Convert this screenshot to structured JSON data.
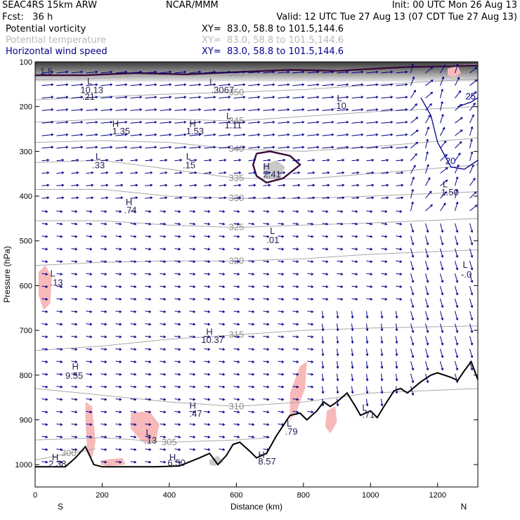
{
  "header": {
    "model": "SEAC4RS 15km ARW",
    "fcst": "Fcst:   36 h",
    "center": "NCAR/MMM",
    "init": "Init: 00 UTC Mon 26 Aug 13",
    "valid": "Valid: 12 UTC Tue 27 Aug 13 (07 CDT Tue 27 Aug 13)",
    "fields": [
      {
        "name": "Potential vorticity",
        "xy": "XY=  83.0, 58.8 to 101.5,144.6",
        "color": "#000000"
      },
      {
        "name": "Potential temperature",
        "xy": "XY=  83.0, 58.8 to 101.5,144.6",
        "color": "#b8b8b8"
      },
      {
        "name": "Horizontal wind speed",
        "xy": "XY=  83.0, 58.8 to 101.5,144.6",
        "color": "#00008b"
      }
    ]
  },
  "chart_data": {
    "type": "cross-section",
    "xlabel": "Distance (km)",
    "ylabel": "Pressure (hPa)",
    "xlim": [
      0,
      1320
    ],
    "ylim": [
      1050,
      100
    ],
    "x_ticks": [
      "0",
      "200",
      "400",
      "600",
      "800",
      "1000",
      "1200"
    ],
    "y_ticks": [
      "100",
      "200",
      "300",
      "400",
      "500",
      "600",
      "700",
      "800",
      "900",
      "1000"
    ],
    "left_end": "S",
    "right_end": "N",
    "colors": {
      "pv_contour": "#3a0a3a",
      "theta": "#a8a8a8",
      "wind_speed": "#00008b",
      "vectors": "#00008b",
      "shade_pink": "#f7b9b9",
      "shade_gray": "#c9c9c9",
      "terrain": "#000000"
    },
    "theta_contours": [
      {
        "label": "355",
        "points": [
          [
            0,
            140
          ],
          [
            150,
            138
          ],
          [
            300,
            132
          ],
          [
            450,
            128
          ],
          [
            600,
            126
          ],
          [
            800,
            120
          ],
          [
            1000,
            115
          ],
          [
            1320,
            105
          ]
        ]
      },
      {
        "label": "350",
        "points": [
          [
            0,
            185
          ],
          [
            200,
            178
          ],
          [
            400,
            172
          ],
          [
            600,
            168
          ],
          [
            800,
            162
          ],
          [
            1000,
            152
          ],
          [
            1320,
            138
          ]
        ]
      },
      {
        "label": "345",
        "points": [
          [
            0,
            235
          ],
          [
            200,
            228
          ],
          [
            400,
            228
          ],
          [
            600,
            232
          ],
          [
            800,
            222
          ],
          [
            1000,
            212
          ],
          [
            1320,
            200
          ]
        ]
      },
      {
        "label": "340",
        "points": [
          [
            0,
            280
          ],
          [
            200,
            276
          ],
          [
            400,
            280
          ],
          [
            600,
            295
          ],
          [
            800,
            300
          ],
          [
            1000,
            290
          ],
          [
            1320,
            270
          ]
        ]
      },
      {
        "label": "335",
        "points": [
          [
            0,
            325
          ],
          [
            200,
            320
          ],
          [
            400,
            340
          ],
          [
            600,
            360
          ],
          [
            800,
            362
          ],
          [
            1000,
            350
          ],
          [
            1320,
            330
          ]
        ]
      },
      {
        "label": "330",
        "points": [
          [
            0,
            385
          ],
          [
            200,
            385
          ],
          [
            400,
            400
          ],
          [
            600,
            405
          ],
          [
            800,
            405
          ],
          [
            1000,
            400
          ],
          [
            1320,
            390
          ]
        ]
      },
      {
        "label": "325",
        "points": [
          [
            0,
            455
          ],
          [
            200,
            455
          ],
          [
            400,
            465
          ],
          [
            600,
            470
          ],
          [
            800,
            465
          ],
          [
            1000,
            460
          ],
          [
            1320,
            450
          ]
        ]
      },
      {
        "label": "320",
        "points": [
          [
            0,
            555
          ],
          [
            200,
            548
          ],
          [
            400,
            545
          ],
          [
            600,
            545
          ],
          [
            800,
            540
          ],
          [
            1000,
            530
          ],
          [
            1320,
            520
          ]
        ]
      },
      {
        "label": "315",
        "points": [
          [
            0,
            745
          ],
          [
            200,
            735
          ],
          [
            400,
            720
          ],
          [
            600,
            710
          ],
          [
            800,
            700
          ],
          [
            1000,
            695
          ],
          [
            1320,
            690
          ]
        ]
      },
      {
        "label": "310",
        "points": [
          [
            0,
            830
          ],
          [
            200,
            845
          ],
          [
            400,
            860
          ],
          [
            600,
            870
          ],
          [
            800,
            860
          ],
          [
            1000,
            840
          ],
          [
            1320,
            830
          ]
        ]
      },
      {
        "label": "305",
        "points": [
          [
            0,
            945
          ],
          [
            200,
            940
          ],
          [
            400,
            950
          ],
          [
            600,
            945
          ],
          [
            700,
            940
          ]
        ]
      },
      {
        "label": "300",
        "points": [
          [
            0,
            990
          ],
          [
            100,
            975
          ],
          [
            180,
            965
          ]
        ]
      }
    ],
    "speed_contours": [
      {
        "label": "20",
        "points": [
          [
            1150,
            180
          ],
          [
            1180,
            220
          ],
          [
            1200,
            280
          ],
          [
            1240,
            335
          ],
          [
            1280,
            340
          ],
          [
            1320,
            320
          ]
        ]
      },
      {
        "label": "25",
        "points": [
          [
            1260,
            200
          ],
          [
            1300,
            190
          ],
          [
            1320,
            180
          ]
        ]
      }
    ],
    "pv_contours": [
      {
        "label": "",
        "points": [
          [
            660,
            305
          ],
          [
            700,
            300
          ],
          [
            760,
            310
          ],
          [
            790,
            330
          ],
          [
            740,
            360
          ],
          [
            690,
            370
          ],
          [
            660,
            355
          ],
          [
            650,
            330
          ],
          [
            660,
            305
          ]
        ]
      },
      {
        "label": "",
        "points": [
          [
            0,
            130
          ],
          [
            150,
            130
          ],
          [
            300,
            125
          ],
          [
            450,
            128
          ],
          [
            600,
            123
          ],
          [
            760,
            118
          ],
          [
            900,
            120
          ],
          [
            1100,
            112
          ],
          [
            1320,
            108
          ]
        ]
      }
    ],
    "pink_regions": [
      [
        [
          10,
          570
        ],
        [
          30,
          555
        ],
        [
          50,
          580
        ],
        [
          45,
          640
        ],
        [
          25,
          655
        ],
        [
          10,
          620
        ]
      ],
      [
        [
          150,
          860
        ],
        [
          170,
          870
        ],
        [
          180,
          950
        ],
        [
          170,
          985
        ],
        [
          155,
          970
        ],
        [
          150,
          900
        ]
      ],
      [
        [
          285,
          885
        ],
        [
          340,
          880
        ],
        [
          370,
          910
        ],
        [
          360,
          950
        ],
        [
          320,
          950
        ],
        [
          285,
          920
        ]
      ],
      [
        [
          760,
          840
        ],
        [
          790,
          780
        ],
        [
          810,
          770
        ],
        [
          805,
          830
        ],
        [
          780,
          880
        ],
        [
          760,
          900
        ]
      ],
      [
        [
          870,
          880
        ],
        [
          895,
          870
        ],
        [
          900,
          905
        ],
        [
          880,
          930
        ],
        [
          865,
          915
        ]
      ],
      [
        [
          200,
          990
        ],
        [
          260,
          985
        ],
        [
          270,
          1000
        ],
        [
          220,
          1003
        ],
        [
          195,
          1000
        ]
      ],
      [
        [
          1230,
          115
        ],
        [
          1260,
          110
        ],
        [
          1270,
          125
        ],
        [
          1250,
          135
        ],
        [
          1230,
          130
        ]
      ]
    ],
    "gray_regions": [
      [
        [
          680,
          330
        ],
        [
          720,
          320
        ],
        [
          745,
          335
        ],
        [
          730,
          360
        ],
        [
          695,
          362
        ],
        [
          680,
          348
        ]
      ],
      [
        [
          520,
          990
        ],
        [
          545,
          980
        ],
        [
          560,
          995
        ],
        [
          535,
          1003
        ],
        [
          520,
          1000
        ]
      ]
    ],
    "terrain": [
      [
        0,
        1005
      ],
      [
        90,
        1005
      ],
      [
        120,
        985
      ],
      [
        150,
        960
      ],
      [
        175,
        1000
      ],
      [
        200,
        1005
      ],
      [
        360,
        1005
      ],
      [
        430,
        1003
      ],
      [
        490,
        985
      ],
      [
        520,
        975
      ],
      [
        545,
        1000
      ],
      [
        570,
        980
      ],
      [
        590,
        955
      ],
      [
        610,
        950
      ],
      [
        640,
        970
      ],
      [
        660,
        985
      ],
      [
        690,
        975
      ],
      [
        720,
        935
      ],
      [
        760,
        890
      ],
      [
        790,
        885
      ],
      [
        810,
        900
      ],
      [
        840,
        880
      ],
      [
        860,
        860
      ],
      [
        880,
        870
      ],
      [
        900,
        860
      ],
      [
        930,
        840
      ],
      [
        955,
        870
      ],
      [
        970,
        890
      ],
      [
        1000,
        880
      ],
      [
        1020,
        895
      ],
      [
        1040,
        870
      ],
      [
        1070,
        835
      ],
      [
        1090,
        830
      ],
      [
        1110,
        840
      ],
      [
        1150,
        815
      ],
      [
        1180,
        800
      ],
      [
        1200,
        795
      ],
      [
        1240,
        805
      ],
      [
        1260,
        812
      ],
      [
        1280,
        790
      ],
      [
        1300,
        770
      ],
      [
        1320,
        810
      ]
    ],
    "annotations": [
      {
        "text": "L",
        "x": 155,
        "y": 150
      },
      {
        "text": "10.13",
        "x": 135,
        "y": 170
      },
      {
        "text": ".21",
        "x": 140,
        "y": 185
      },
      {
        "text": "H",
        "x": 230,
        "y": 245
      },
      {
        "text": "1.35",
        "x": 230,
        "y": 262
      },
      {
        "text": "L",
        "x": 180,
        "y": 318
      },
      {
        "text": ".33",
        "x": 170,
        "y": 338
      },
      {
        "text": "H",
        "x": 270,
        "y": 420
      },
      {
        "text": ".74",
        "x": 265,
        "y": 438
      },
      {
        "text": "H",
        "x": 460,
        "y": 245
      },
      {
        "text": "1.53",
        "x": 450,
        "y": 262
      },
      {
        "text": "L",
        "x": 450,
        "y": 318
      },
      {
        "text": ".15",
        "x": 440,
        "y": 338
      },
      {
        "text": "L",
        "x": 570,
        "y": 228
      },
      {
        "text": "1.11",
        "x": 565,
        "y": 248
      },
      {
        "text": "L",
        "x": 520,
        "y": 152
      },
      {
        "text": ".3067",
        "x": 525,
        "y": 170
      },
      {
        "text": "H",
        "x": 680,
        "y": 340
      },
      {
        "text": "2.41",
        "x": 680,
        "y": 358
      },
      {
        "text": "L",
        "x": 900,
        "y": 188
      },
      {
        "text": ".10",
        "x": 890,
        "y": 205
      },
      {
        "text": "L",
        "x": 700,
        "y": 485
      },
      {
        "text": ".01",
        "x": 690,
        "y": 505
      },
      {
        "text": "L",
        "x": 45,
        "y": 580
      },
      {
        "text": ".13",
        "x": 45,
        "y": 600
      },
      {
        "text": "H",
        "x": 510,
        "y": 710
      },
      {
        "text": "10.37",
        "x": 495,
        "y": 728
      },
      {
        "text": "H",
        "x": 110,
        "y": 788
      },
      {
        "text": "9.55",
        "x": 90,
        "y": 808
      },
      {
        "text": "H",
        "x": 460,
        "y": 875
      },
      {
        "text": ".47",
        "x": 460,
        "y": 893
      },
      {
        "text": "L",
        "x": 330,
        "y": 935
      },
      {
        "text": ".13",
        "x": 325,
        "y": 953
      },
      {
        "text": "H",
        "x": 400,
        "y": 990
      },
      {
        "text": "6.50",
        "x": 395,
        "y": 1003
      },
      {
        "text": "L",
        "x": 750,
        "y": 915
      },
      {
        "text": ".79",
        "x": 745,
        "y": 933
      },
      {
        "text": "H",
        "x": 665,
        "y": 985
      },
      {
        "text": "8.57",
        "x": 665,
        "y": 1000
      },
      {
        "text": "L",
        "x": 975,
        "y": 880
      },
      {
        "text": ".71",
        "x": 975,
        "y": 895
      },
      {
        "text": "L",
        "x": 1215,
        "y": 380
      },
      {
        "text": "1.50",
        "x": 1210,
        "y": 398
      },
      {
        "text": "L",
        "x": 1275,
        "y": 560
      },
      {
        "text": "-.0",
        "x": 1270,
        "y": 582
      },
      {
        "text": "H",
        "x": 50,
        "y": 990
      },
      {
        "text": "2.38",
        "x": 40,
        "y": 1005
      },
      {
        "text": "1.5",
        "x": 15,
        "y": 128
      }
    ]
  }
}
